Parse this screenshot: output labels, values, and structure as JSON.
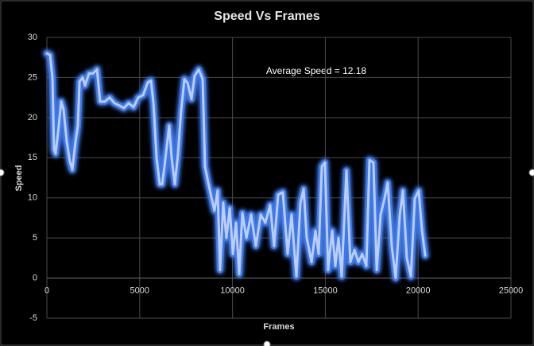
{
  "chart_data": {
    "type": "line",
    "title": "Speed Vs Frames",
    "x_label": "Frames",
    "y_label": "Speed",
    "annotation": "Average Speed = 12.18",
    "xlim": [
      0,
      25000
    ],
    "xticks": [
      0,
      5000,
      10000,
      15000,
      20000,
      25000
    ],
    "ylim": [
      -5,
      30
    ],
    "yticks": [
      -5,
      0,
      5,
      10,
      15,
      20,
      25,
      30
    ],
    "grid": true,
    "x": [
      0,
      170,
      300,
      385,
      470,
      640,
      770,
      900,
      1070,
      1240,
      1370,
      1540,
      1670,
      1760,
      1930,
      2050,
      2270,
      2480,
      2700,
      2870,
      3120,
      3380,
      3640,
      3900,
      4150,
      4410,
      4670,
      4920,
      5180,
      5440,
      5610,
      5740,
      5910,
      6080,
      6210,
      6340,
      6590,
      6720,
      6890,
      7060,
      7230,
      7410,
      7580,
      7790,
      7960,
      8180,
      8390,
      8520,
      8690,
      8860,
      9030,
      9200,
      9330,
      9500,
      9670,
      9850,
      10020,
      10190,
      10360,
      10530,
      10750,
      11000,
      11260,
      11520,
      11770,
      12030,
      12240,
      12460,
      12710,
      12970,
      13180,
      13440,
      13660,
      13830,
      14000,
      14260,
      14470,
      14640,
      14810,
      14980,
      15150,
      15370,
      15540,
      15710,
      15880,
      16140,
      16350,
      16570,
      16780,
      16990,
      17210,
      17380,
      17590,
      17770,
      17980,
      18190,
      18360,
      18580,
      18790,
      19010,
      19180,
      19390,
      19610,
      19820,
      20030,
      20210,
      20380
    ],
    "series": [
      {
        "color": "#3f78e8",
        "values": [
          28,
          27.8,
          25,
          16,
          15.5,
          19,
          22,
          21,
          17,
          14.5,
          13.5,
          17,
          19,
          24.5,
          25,
          24,
          25.5,
          25.5,
          26,
          22,
          22,
          22.5,
          21.8,
          21.5,
          21.2,
          21.8,
          21.3,
          22.5,
          22.8,
          24.4,
          24.6,
          21.8,
          14.9,
          11.7,
          11.7,
          14,
          19,
          15,
          11.7,
          15.4,
          20.8,
          24.8,
          24.3,
          22.3,
          25.2,
          26,
          24.8,
          13.9,
          11.9,
          10.1,
          8.4,
          10.9,
          1,
          9.4,
          5,
          8.7,
          3,
          6.9,
          0.5,
          8.1,
          5,
          7.9,
          4,
          7.9,
          6.9,
          9.1,
          4,
          10.4,
          10.7,
          3,
          7.9,
          0.2,
          9.4,
          11.1,
          5,
          2,
          5.9,
          3,
          13.9,
          14.4,
          1,
          5.9,
          1.5,
          5,
          0.2,
          13.4,
          2,
          3.5,
          2,
          3,
          1.5,
          14.7,
          14.4,
          1,
          7.9,
          9.9,
          11.9,
          4,
          0,
          7.9,
          10.9,
          2.5,
          0.2,
          9.9,
          10.9,
          5.9,
          2.8
        ]
      }
    ]
  }
}
